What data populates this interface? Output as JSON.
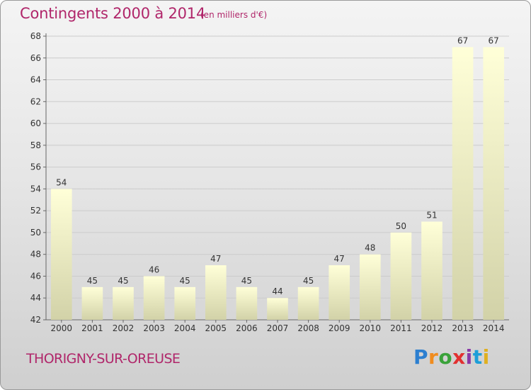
{
  "header": {
    "title": "Contingents 2000 à 2014",
    "subtitle": "(en milliers d'€)"
  },
  "footer": {
    "commune": "THORIGNY-SUR-OREUSE",
    "logo_letters": [
      "P",
      "r",
      "o",
      "x",
      "i",
      "t",
      "i"
    ]
  },
  "chart_data": {
    "type": "bar",
    "title": "Contingents 2000 à 2014",
    "subtitle": "(en milliers d'€)",
    "xlabel": "",
    "ylabel": "",
    "categories": [
      "2000",
      "2001",
      "2002",
      "2003",
      "2004",
      "2005",
      "2006",
      "2007",
      "2008",
      "2009",
      "2010",
      "2011",
      "2012",
      "2013",
      "2014"
    ],
    "values": [
      54,
      45,
      45,
      46,
      45,
      47,
      45,
      44,
      45,
      47,
      48,
      50,
      51,
      67,
      67
    ],
    "ylim": [
      42,
      68
    ],
    "yticks": [
      42,
      44,
      46,
      48,
      50,
      52,
      54,
      56,
      58,
      60,
      62,
      64,
      66,
      68
    ],
    "grid": true,
    "legend": "none",
    "colors": {
      "bar_top": "#ffffd8",
      "bar_bottom": "#d2d2a8",
      "grid": "#cccccc",
      "text": "#333333"
    }
  }
}
